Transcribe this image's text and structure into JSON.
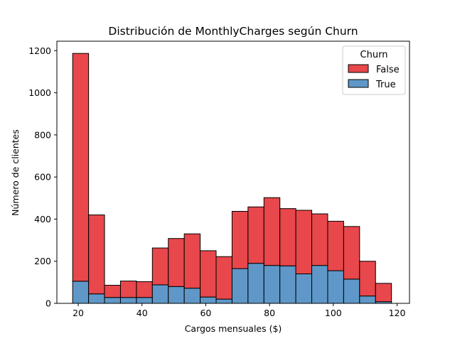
{
  "chart_data": {
    "type": "bar",
    "stacked": true,
    "title": "Distribución de MonthlyCharges según Churn",
    "xlabel": "Cargos mensuales ($)",
    "ylabel": "Número de clientes",
    "xlim": [
      13.3,
      123.9
    ],
    "ylim": [
      0,
      1245
    ],
    "xticks": [
      20,
      40,
      60,
      80,
      100,
      120
    ],
    "yticks": [
      0,
      200,
      400,
      600,
      800,
      1000,
      1200
    ],
    "bin_edges": [
      18.25,
      23.25,
      28.25,
      33.25,
      38.25,
      43.25,
      48.25,
      53.25,
      58.25,
      63.25,
      68.25,
      73.25,
      78.25,
      83.25,
      88.25,
      93.25,
      98.25,
      103.25,
      108.25,
      113.25,
      118.25
    ],
    "legend": {
      "title": "Churn",
      "placement": "top-right"
    },
    "series": [
      {
        "name": "False",
        "color": "#e8474b",
        "values": [
          1082,
          375,
          58,
          78,
          75,
          175,
          228,
          258,
          220,
          202,
          272,
          268,
          322,
          272,
          302,
          245,
          235,
          250,
          165,
          87
        ]
      },
      {
        "name": "True",
        "color": "#5f98c8",
        "values": [
          105,
          45,
          28,
          28,
          28,
          88,
          80,
          72,
          30,
          20,
          165,
          190,
          180,
          178,
          140,
          180,
          155,
          115,
          35,
          8
        ]
      }
    ]
  }
}
